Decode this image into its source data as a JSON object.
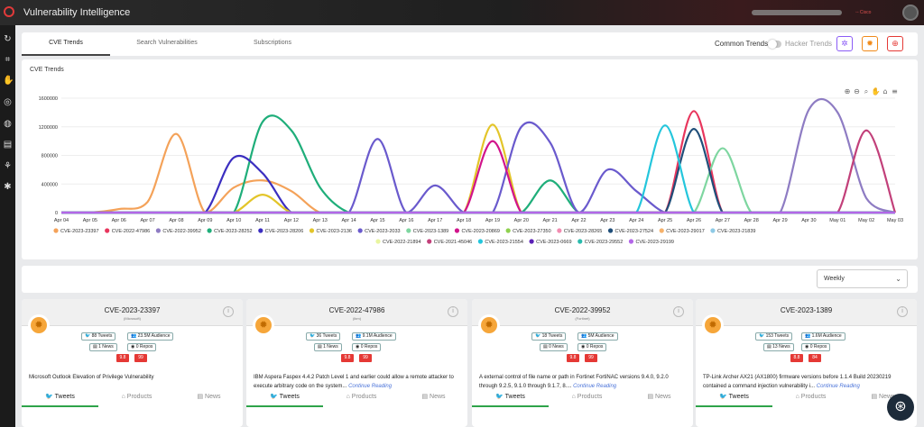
{
  "app": {
    "title": "Vulnerability Intelligence",
    "user_sub": "◦◦ Cisco"
  },
  "sidebar_icons": [
    "refresh-icon",
    "scan-icon",
    "hand-icon",
    "target-icon",
    "globe-icon",
    "book-icon",
    "share-icon",
    "bug-icon"
  ],
  "tabs": [
    "CVE Trends",
    "Search Vulnerabilities",
    "Subscriptions"
  ],
  "trend_toggle": {
    "left": "Common Trends",
    "right": "Hacker Trends"
  },
  "toolbar_colors": {
    "purple": "#8b5cf6",
    "orange": "#f08a1a",
    "red": "#e53935"
  },
  "chart_title": "CVE Trends",
  "chart_data": {
    "type": "line",
    "ylim": [
      0,
      1600000
    ],
    "yticks": [
      0,
      400000,
      800000,
      1200000,
      1600000
    ],
    "categories": [
      "Apr 04",
      "Apr 05",
      "Apr 06",
      "Apr 07",
      "Apr 08",
      "Apr 09",
      "Apr 10",
      "Apr 11",
      "Apr 12",
      "Apr 13",
      "Apr 14",
      "Apr 15",
      "Apr 16",
      "Apr 17",
      "Apr 18",
      "Apr 19",
      "Apr 20",
      "Apr 21",
      "Apr 22",
      "Apr 23",
      "Apr 24",
      "Apr 25",
      "Apr 26",
      "Apr 27",
      "Apr 28",
      "Apr 29",
      "Apr 30",
      "May 01",
      "May 02",
      "May 03"
    ],
    "series": [
      {
        "name": "CVE-2023-23397",
        "color": "#f4a259",
        "values": [
          0,
          0,
          50000,
          150000,
          1100000,
          0,
          350000,
          450000,
          300000,
          0,
          0,
          0,
          0,
          0,
          0,
          0,
          0,
          0,
          0,
          0,
          0,
          0,
          0,
          0,
          0,
          0,
          0,
          0,
          0,
          0
        ]
      },
      {
        "name": "CVE-2022-47986",
        "color": "#e8365d",
        "values": [
          0,
          0,
          0,
          0,
          0,
          0,
          0,
          0,
          0,
          0,
          0,
          0,
          0,
          0,
          0,
          0,
          0,
          0,
          0,
          0,
          0,
          0,
          1420000,
          0,
          0,
          0,
          0,
          0,
          0,
          0
        ]
      },
      {
        "name": "CVE-2022-39952",
        "color": "#8e7cc3",
        "values": [
          0,
          0,
          0,
          0,
          0,
          0,
          0,
          0,
          0,
          0,
          0,
          0,
          0,
          0,
          0,
          0,
          0,
          0,
          0,
          0,
          0,
          0,
          0,
          0,
          0,
          0,
          1440000,
          1400000,
          200000,
          0
        ]
      },
      {
        "name": "CVE-2023-28252",
        "color": "#1fae7a",
        "values": [
          0,
          0,
          0,
          0,
          0,
          0,
          0,
          1270000,
          1150000,
          350000,
          0,
          0,
          0,
          0,
          0,
          0,
          0,
          450000,
          0,
          0,
          0,
          0,
          0,
          0,
          0,
          0,
          0,
          0,
          0,
          0
        ]
      },
      {
        "name": "CVE-2023-28206",
        "color": "#3b2ec0",
        "values": [
          0,
          0,
          0,
          0,
          0,
          0,
          770000,
          550000,
          0,
          0,
          0,
          0,
          0,
          0,
          0,
          0,
          0,
          0,
          0,
          0,
          0,
          0,
          0,
          0,
          0,
          0,
          0,
          0,
          0,
          0
        ]
      },
      {
        "name": "CVE-2023-2136",
        "color": "#e3c52a",
        "values": [
          0,
          0,
          0,
          0,
          0,
          0,
          0,
          250000,
          0,
          0,
          0,
          0,
          0,
          0,
          0,
          1230000,
          0,
          0,
          0,
          0,
          0,
          0,
          0,
          0,
          0,
          0,
          0,
          0,
          0,
          0
        ]
      },
      {
        "name": "CVE-2023-2033",
        "color": "#6a5acd",
        "values": [
          0,
          0,
          0,
          0,
          0,
          0,
          0,
          0,
          0,
          0,
          0,
          1030000,
          0,
          380000,
          0,
          0,
          1200000,
          980000,
          0,
          600000,
          300000,
          0,
          0,
          0,
          0,
          0,
          0,
          0,
          0,
          0
        ]
      },
      {
        "name": "CVE-2023-1389",
        "color": "#7ed6a0",
        "values": [
          0,
          0,
          0,
          0,
          0,
          0,
          0,
          0,
          0,
          0,
          0,
          0,
          0,
          0,
          0,
          0,
          0,
          0,
          0,
          0,
          0,
          0,
          0,
          900000,
          0,
          0,
          0,
          0,
          0,
          0
        ]
      },
      {
        "name": "CVE-2023-20869",
        "color": "#d1148b",
        "values": [
          0,
          0,
          0,
          0,
          0,
          0,
          0,
          0,
          0,
          0,
          0,
          0,
          0,
          0,
          0,
          1000000,
          0,
          0,
          0,
          0,
          0,
          0,
          0,
          0,
          0,
          0,
          0,
          0,
          0,
          0
        ]
      },
      {
        "name": "CVE-2023-27350",
        "color": "#8fd14f",
        "values": [
          0,
          0,
          0,
          0,
          0,
          0,
          0,
          0,
          0,
          0,
          0,
          0,
          0,
          0,
          0,
          0,
          0,
          0,
          0,
          0,
          0,
          0,
          0,
          0,
          0,
          0,
          0,
          0,
          0,
          0
        ]
      },
      {
        "name": "CVE-2023-28265",
        "color": "#f28cb1",
        "values": [
          0,
          0,
          0,
          0,
          0,
          0,
          0,
          0,
          0,
          0,
          0,
          0,
          0,
          0,
          0,
          0,
          0,
          0,
          0,
          0,
          0,
          0,
          0,
          0,
          0,
          0,
          0,
          0,
          0,
          0
        ]
      },
      {
        "name": "CVE-2023-27524",
        "color": "#1f4e79",
        "values": [
          0,
          0,
          0,
          0,
          0,
          0,
          0,
          0,
          0,
          0,
          0,
          0,
          0,
          0,
          0,
          0,
          0,
          0,
          0,
          0,
          0,
          0,
          1170000,
          0,
          0,
          0,
          0,
          0,
          0,
          0
        ]
      },
      {
        "name": "CVE-2023-29017",
        "color": "#f6b26b",
        "values": [
          0,
          0,
          0,
          0,
          0,
          0,
          0,
          0,
          0,
          0,
          0,
          0,
          0,
          0,
          0,
          0,
          0,
          0,
          0,
          0,
          0,
          0,
          0,
          0,
          0,
          0,
          0,
          0,
          0,
          0
        ]
      },
      {
        "name": "CVE-2023-21839",
        "color": "#8ecae6",
        "values": [
          0,
          0,
          0,
          0,
          0,
          0,
          0,
          0,
          0,
          0,
          0,
          0,
          0,
          0,
          0,
          0,
          0,
          0,
          0,
          0,
          0,
          0,
          0,
          0,
          0,
          0,
          0,
          0,
          0,
          0
        ]
      },
      {
        "name": "CVE-2022-21894",
        "color": "#e9f5a0",
        "values": [
          0,
          0,
          0,
          0,
          0,
          0,
          0,
          0,
          0,
          0,
          0,
          0,
          0,
          0,
          0,
          0,
          0,
          0,
          0,
          0,
          0,
          0,
          0,
          0,
          0,
          0,
          0,
          0,
          0,
          0
        ]
      },
      {
        "name": "CVE-2021-45046",
        "color": "#c2407a",
        "values": [
          0,
          0,
          0,
          0,
          0,
          0,
          0,
          0,
          0,
          0,
          0,
          0,
          0,
          0,
          0,
          0,
          0,
          0,
          0,
          0,
          0,
          0,
          0,
          0,
          0,
          0,
          0,
          0,
          1150000,
          0
        ]
      },
      {
        "name": "CVE-2023-21554",
        "color": "#24c6dc",
        "values": [
          0,
          0,
          0,
          0,
          0,
          0,
          0,
          0,
          0,
          0,
          0,
          0,
          0,
          0,
          0,
          0,
          0,
          0,
          0,
          0,
          0,
          1220000,
          0,
          0,
          0,
          0,
          0,
          0,
          0,
          0
        ]
      },
      {
        "name": "CVE-2023-0669",
        "color": "#5b21b6",
        "values": [
          0,
          0,
          0,
          0,
          0,
          0,
          0,
          0,
          0,
          0,
          0,
          0,
          0,
          0,
          0,
          0,
          0,
          0,
          0,
          0,
          0,
          0,
          0,
          0,
          0,
          0,
          0,
          0,
          0,
          0
        ]
      },
      {
        "name": "CVE-2023-29552",
        "color": "#2bbbad",
        "values": [
          0,
          0,
          0,
          0,
          0,
          0,
          0,
          0,
          0,
          0,
          0,
          0,
          0,
          0,
          0,
          0,
          0,
          0,
          0,
          0,
          0,
          0,
          0,
          0,
          0,
          0,
          0,
          0,
          0,
          0
        ]
      },
      {
        "name": "CVE-2023-29199",
        "color": "#b366e8",
        "values": [
          0,
          0,
          0,
          0,
          0,
          0,
          0,
          0,
          0,
          0,
          0,
          0,
          0,
          0,
          0,
          0,
          0,
          0,
          0,
          0,
          0,
          0,
          0,
          0,
          0,
          0,
          0,
          0,
          0,
          0
        ]
      }
    ]
  },
  "filter": {
    "selected": "Weekly"
  },
  "cards": [
    {
      "title": "CVE-2023-23397",
      "vendor": "(Microsoft)",
      "tweets": "88 Tweets",
      "audience": "23.5M Audience",
      "news": "1 News",
      "repos": "0 Repos",
      "score1": "9.8",
      "score2": "99",
      "desc": "Microsoft Outlook Elevation of Privilege Vulnerability",
      "more": ""
    },
    {
      "title": "CVE-2022-47986",
      "vendor": "(ibm)",
      "tweets": "36 Tweets",
      "audience": "9.1M Audience",
      "news": "1 News",
      "repos": "0 Repos",
      "score1": "9.8",
      "score2": "99",
      "desc": "IBM Aspera Faspex 4.4.2 Patch Level 1 and earlier could allow a remote attacker to execute arbitrary code on the system...",
      "more": "Continue Reading"
    },
    {
      "title": "CVE-2022-39952",
      "vendor": "(Fortinet)",
      "tweets": "18 Tweets",
      "audience": "5M Audience",
      "news": "0 News",
      "repos": "0 Repos",
      "score1": "9.8",
      "score2": "99",
      "desc": "A external control of file name or path in Fortinet FortiNAC versions 9.4.0, 9.2.0 through 9.2.5, 9.1.0 through 9.1.7, 8....",
      "more": "Continue Reading"
    },
    {
      "title": "CVE-2023-1389",
      "vendor": "",
      "tweets": "153 Tweets",
      "audience": "1.6M Audience",
      "news": "13 News",
      "repos": "0 Repos",
      "score1": "8.8",
      "score2": "84",
      "desc": "TP-Link Archer AX21 (AX1800) firmware versions before 1.1.4 Build 20230219 contained a command injection vulnerability i...",
      "more": "Continue Reading"
    }
  ],
  "card_tabs": [
    "Tweets",
    "Products",
    "News"
  ]
}
